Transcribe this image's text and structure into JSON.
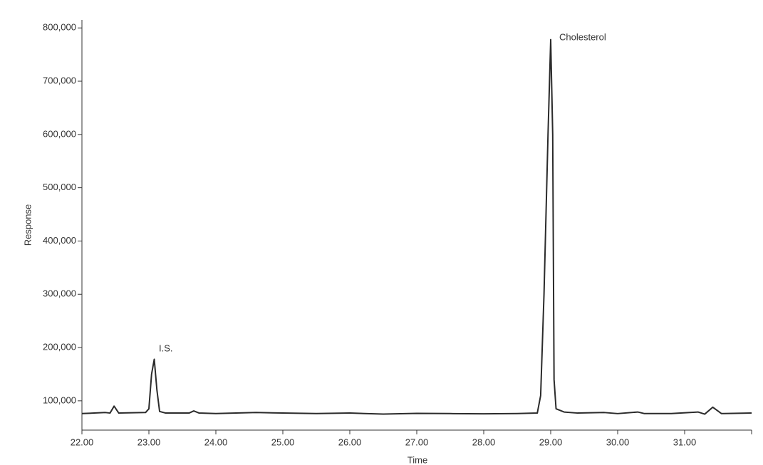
{
  "chart_data": {
    "type": "line",
    "x_label": "Time",
    "y_label": "Response",
    "color": "#2b2b2b",
    "annotations": [
      "I.S.",
      "Cholesterol"
    ],
    "xlim": [
      22,
      32
    ],
    "ylim": [
      45000,
      815000
    ],
    "xticks": [
      {
        "value": 22,
        "label": "22.00"
      },
      {
        "value": 23,
        "label": "23.00"
      },
      {
        "value": 24,
        "label": "24.00"
      },
      {
        "value": 25,
        "label": "25.00"
      },
      {
        "value": 26,
        "label": "26.00"
      },
      {
        "value": 27,
        "label": "27.00"
      },
      {
        "value": 28,
        "label": "28.00"
      },
      {
        "value": 29,
        "label": "29.00"
      },
      {
        "value": 30,
        "label": "30.00"
      },
      {
        "value": 31,
        "label": "31.00"
      }
    ],
    "yticks": [
      {
        "value": 100000,
        "label": "100,000"
      },
      {
        "value": 200000,
        "label": "200,000"
      },
      {
        "value": 300000,
        "label": "300,000"
      },
      {
        "value": 400000,
        "label": "400,000"
      },
      {
        "value": 500000,
        "label": "500,000"
      },
      {
        "value": 600000,
        "label": "600,000"
      },
      {
        "value": 700000,
        "label": "700,000"
      },
      {
        "value": 800000,
        "label": "800,000"
      }
    ],
    "x": [
      22.0,
      22.35,
      22.42,
      22.48,
      22.55,
      22.95,
      23.0,
      23.04,
      23.08,
      23.12,
      23.16,
      23.25,
      23.6,
      23.67,
      23.75,
      24.0,
      24.6,
      25.5,
      26.0,
      26.5,
      27.0,
      27.5,
      28.0,
      28.5,
      28.8,
      28.85,
      28.9,
      28.96,
      29.0,
      29.03,
      29.05,
      29.08,
      29.2,
      29.4,
      29.8,
      30.0,
      30.3,
      30.4,
      30.8,
      31.2,
      31.3,
      31.42,
      31.55,
      32.0
    ],
    "values": [
      76000,
      78000,
      77000,
      90000,
      77000,
      78000,
      85000,
      150000,
      178000,
      120000,
      80000,
      77000,
      77000,
      81000,
      77000,
      76000,
      78000,
      76000,
      77000,
      75000,
      76500,
      76000,
      75500,
      76000,
      77000,
      110000,
      300000,
      600000,
      778000,
      600000,
      140000,
      85000,
      79000,
      77000,
      78000,
      76000,
      79000,
      76000,
      76000,
      79000,
      75000,
      88000,
      76000,
      77000
    ]
  }
}
